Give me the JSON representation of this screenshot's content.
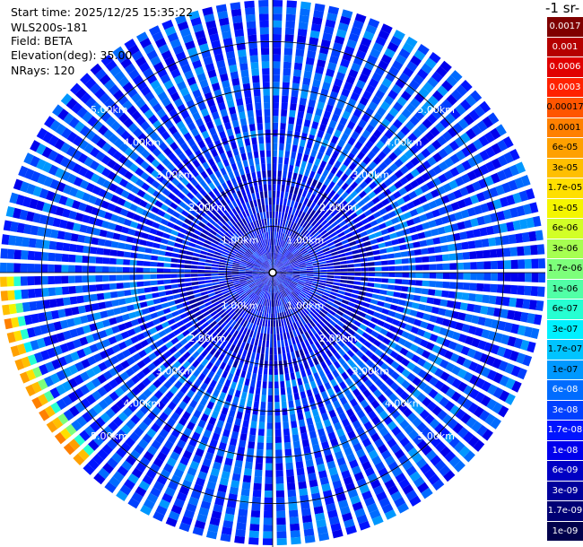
{
  "header": {
    "start_time": "Start time: 2025/12/25 15:35:22",
    "instrument": "WLS200s-181",
    "field": "Field: BETA",
    "elevation": "Elevation(deg): 35.00",
    "nrays": "NRays: 120"
  },
  "colorbar": {
    "unit_label": "-1 sr-",
    "ticks": [
      "0.0017",
      "0.001",
      "0.0006",
      "0.0003",
      "0.00017",
      "0.0001",
      "6e-05",
      "3e-05",
      "1.7e-05",
      "1e-05",
      "6e-06",
      "3e-06",
      "1.7e-06",
      "1e-06",
      "6e-07",
      "3e-07",
      "1.7e-07",
      "1e-07",
      "6e-08",
      "3e-08",
      "1.7e-08",
      "1e-08",
      "6e-09",
      "3e-09",
      "1.7e-09",
      "1e-09"
    ],
    "colors": [
      "#7f0000",
      "#b50000",
      "#e00000",
      "#ff2200",
      "#ff5500",
      "#ff8000",
      "#ffa000",
      "#ffbf00",
      "#ffdf00",
      "#f5f500",
      "#d2ff26",
      "#a6ff51",
      "#7dff7a",
      "#51ffa6",
      "#26ffd2",
      "#00f0ff",
      "#00c4ff",
      "#0098ff",
      "#006cff",
      "#0040ff",
      "#0014ff",
      "#0000ec",
      "#0000c4",
      "#00009c",
      "#000074",
      "#00004c"
    ]
  },
  "chart_data": {
    "type": "heatmap",
    "projection": "polar PPI",
    "field": "BETA",
    "elevation_deg": 35.0,
    "n_rays": 120,
    "range_rings_km": [
      "1.00km",
      "2.00km",
      "3.00km",
      "4.00km",
      "5.00km"
    ],
    "range_values_km": [
      1,
      2,
      3,
      4,
      5
    ],
    "max_range_km": 5.9,
    "value_scale": "log",
    "value_range": [
      1e-09,
      0.0017
    ],
    "typical_background": 3e-08,
    "inner_region_value": 1e-08,
    "feature": {
      "description_values": [
        0.0001,
        3e-05,
        1e-06
      ],
      "azimuth_deg_range": [
        225,
        270
      ]
    }
  }
}
